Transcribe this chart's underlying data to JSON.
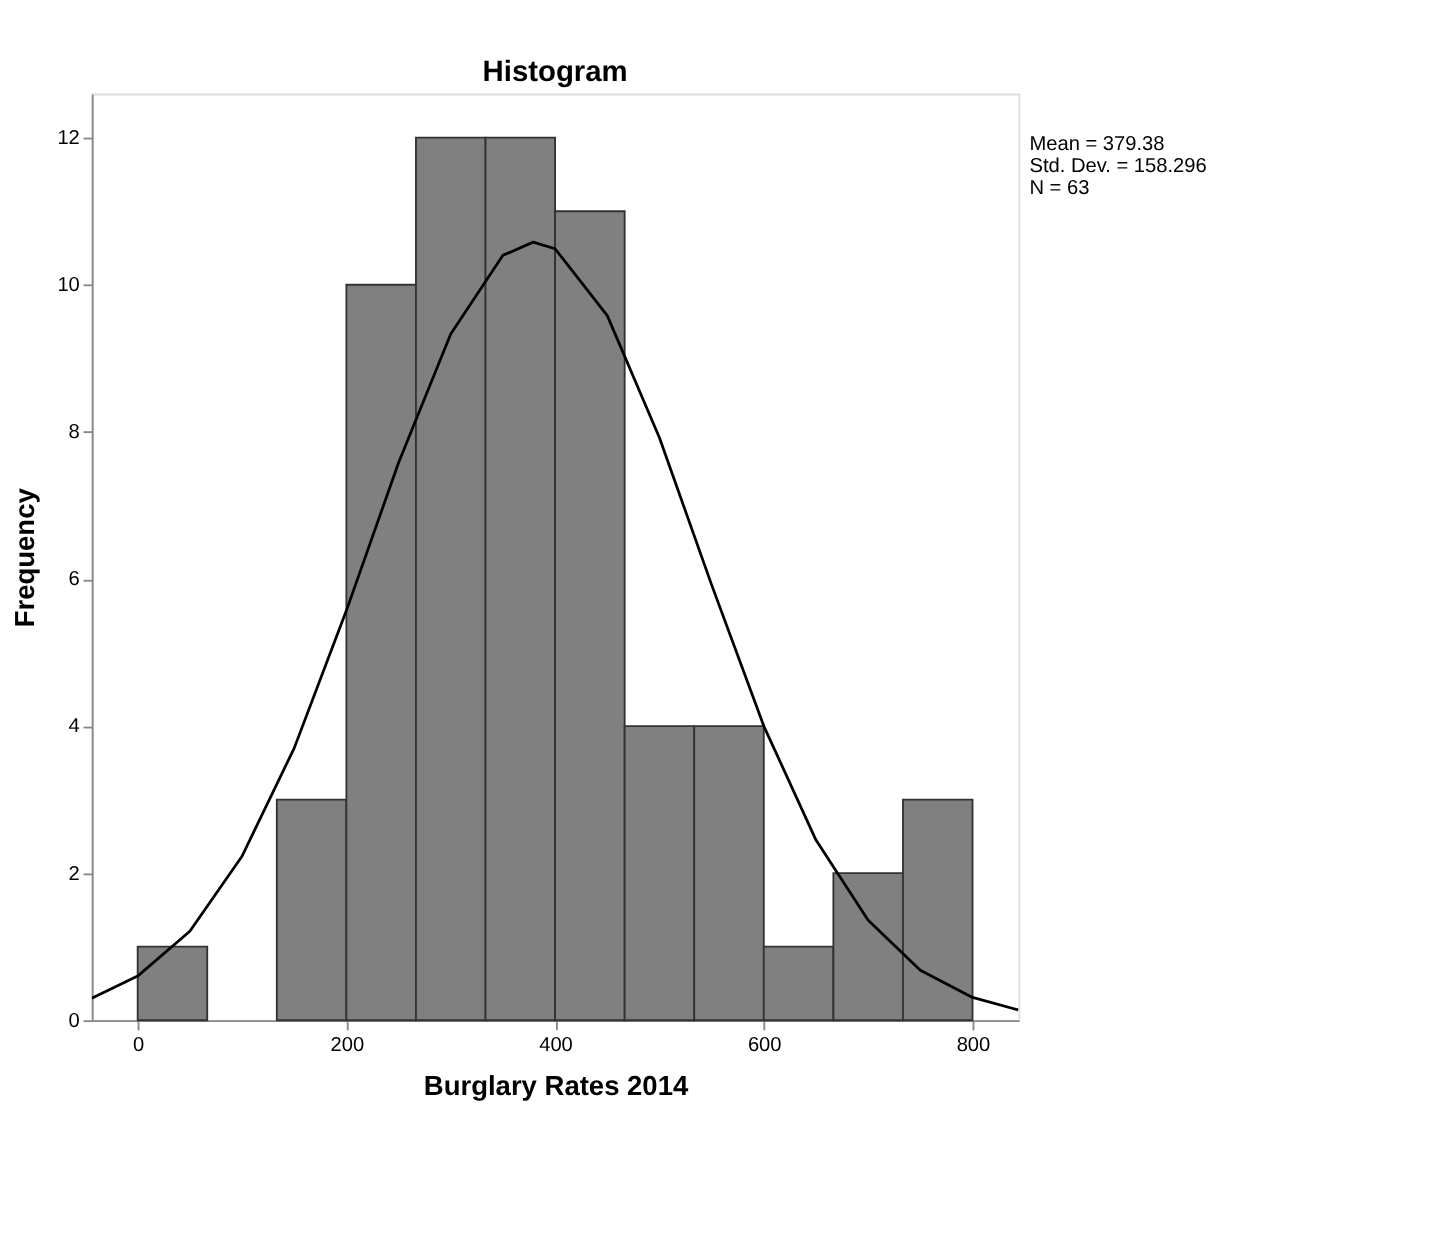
{
  "chart_data": {
    "type": "histogram",
    "title": "Histogram",
    "xlabel": "Burglary Rates 2014",
    "ylabel": "Frequency",
    "bins": [
      0,
      66.67,
      133.33,
      200,
      266.67,
      333.33,
      400,
      466.67,
      533.33,
      600,
      666.67,
      733.33,
      800
    ],
    "values": [
      1,
      0,
      3,
      10,
      12,
      12,
      11,
      4,
      4,
      1,
      2,
      3
    ],
    "color": "#808080",
    "series": [
      {
        "type": "line",
        "color": "#000000",
        "x": [
          -44,
          0,
          50,
          100,
          150,
          200,
          250,
          300,
          350,
          379,
          400,
          450,
          500,
          550,
          600,
          650,
          700,
          750,
          800,
          844
        ],
        "values": [
          0.3,
          0.6,
          1.21,
          2.23,
          3.7,
          5.57,
          7.58,
          9.33,
          10.4,
          10.58,
          10.49,
          9.58,
          7.92,
          5.92,
          4.0,
          2.45,
          1.36,
          0.68,
          0.31,
          0.14
        ]
      }
    ],
    "xlim": [
      -44,
      844
    ],
    "xticks": [
      0,
      200,
      400,
      600,
      800
    ],
    "ylim": [
      0,
      12.6
    ],
    "yticks": [
      0,
      2,
      4,
      6,
      8,
      10,
      12
    ],
    "annotations": [
      "Mean = 379.38",
      "Std. Dev. = 158.296",
      "N = 63"
    ],
    "grid": false
  }
}
